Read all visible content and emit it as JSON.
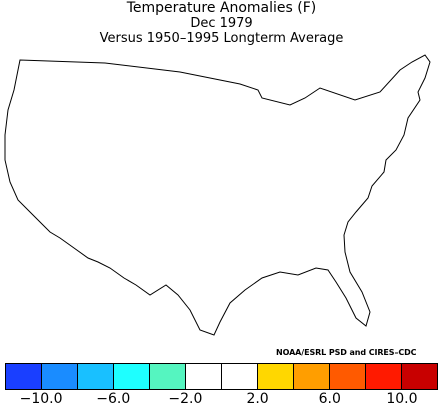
{
  "title": "Temperature Anomalies (F)",
  "subtitle_date": "Dec 1979",
  "subtitle_baseline": "Versus 1950–1995 Longterm Average",
  "credit": "NOAA/ESRL PSD and CIRES–CDC",
  "legend": {
    "colors": [
      "#1a3fff",
      "#1a8cff",
      "#19c0ff",
      "#1effff",
      "#55f5c0",
      "#ffffff",
      "#ffffff",
      "#ffd700",
      "#ff9e00",
      "#ff5a00",
      "#ff1a00",
      "#c80000"
    ],
    "tick_labels": [
      "−10.0",
      "−6.0",
      "−2.0",
      "2.0",
      "6.0",
      "10.0"
    ]
  },
  "anomaly_classes": {
    "strong_warm": "#c80000",
    "warm_8_10": "#ff1a00",
    "warm_6_8": "#ff5a00",
    "warm_4_6": "#ff9e00",
    "warm_2_4": "#ffd700",
    "near_normal": "#ffffff",
    "cool_2_4": "#55f5c0"
  }
}
